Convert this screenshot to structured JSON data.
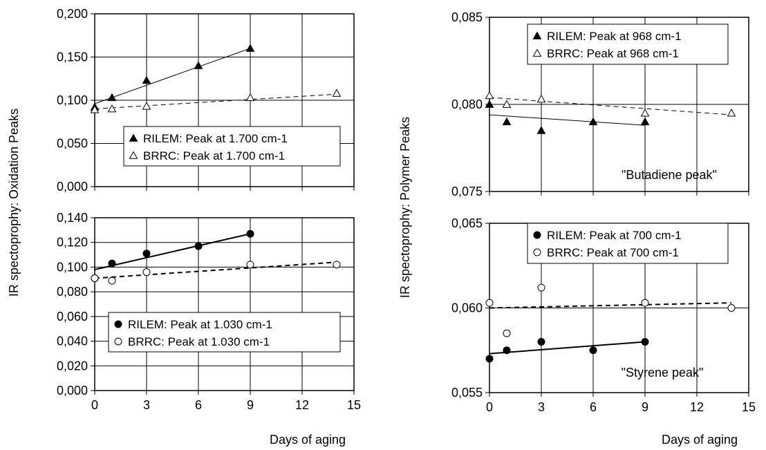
{
  "figure": {
    "left_ylabel": "IR spectoprophy: Oxidation Peaks",
    "right_ylabel": "IR spectoprophy: Polymer Peaks",
    "left_xlabel": "Days of aging",
    "right_xlabel": "Days of aging"
  },
  "chart_data": [
    {
      "type": "scatter",
      "xlim": [
        0,
        15
      ],
      "ylim": [
        0,
        0.2
      ],
      "yticks": [
        "0,000",
        "0,050",
        "0,100",
        "0,150",
        "0,200"
      ],
      "xticks": [],
      "grid": true,
      "legend_position": "bottom-center",
      "annotation": "",
      "series": [
        {
          "name": "RILEM: Peak at 1.700 cm-1",
          "marker": "triangle-filled",
          "x": [
            0,
            1,
            3,
            6,
            9
          ],
          "y": [
            0.092,
            0.103,
            0.123,
            0.14,
            0.16
          ],
          "trend": {
            "x": [
              0,
              9
            ],
            "y": [
              0.096,
              0.16
            ],
            "dash": false,
            "width": 1
          }
        },
        {
          "name": "BRRC: Peak at 1.700 cm-1",
          "marker": "triangle-open",
          "x": [
            0,
            1,
            3,
            9,
            14
          ],
          "y": [
            0.089,
            0.09,
            0.093,
            0.103,
            0.108
          ],
          "trend": {
            "x": [
              0,
              14
            ],
            "y": [
              0.09,
              0.107
            ],
            "dash": true,
            "width": 1
          }
        }
      ]
    },
    {
      "type": "scatter",
      "xlim": [
        0,
        15
      ],
      "ylim": [
        0,
        0.14
      ],
      "yticks": [
        "0,000",
        "0,020",
        "0,040",
        "0,060",
        "0,080",
        "0,100",
        "0,120",
        "0,140"
      ],
      "xticks": [
        "0",
        "3",
        "6",
        "9",
        "12",
        "15"
      ],
      "grid": true,
      "legend_position": "bottom-right",
      "annotation": "",
      "series": [
        {
          "name": "RILEM: Peak at 1.030 cm-1",
          "marker": "circle-filled",
          "x": [
            0,
            1,
            3,
            6,
            9
          ],
          "y": [
            0.091,
            0.103,
            0.111,
            0.117,
            0.127
          ],
          "trend": {
            "x": [
              0,
              9
            ],
            "y": [
              0.098,
              0.127
            ],
            "dash": false,
            "width": 2
          }
        },
        {
          "name": "BRRC: Peak at 1.030 cm-1",
          "marker": "circle-open",
          "x": [
            0,
            1,
            3,
            9,
            14
          ],
          "y": [
            0.091,
            0.089,
            0.096,
            0.102,
            0.102
          ],
          "trend": {
            "x": [
              0,
              14
            ],
            "y": [
              0.091,
              0.104
            ],
            "dash": true,
            "width": 2
          }
        }
      ]
    },
    {
      "type": "scatter",
      "xlim": [
        0,
        15
      ],
      "ylim": [
        0.075,
        0.085
      ],
      "yticks": [
        "0,075",
        "0,080",
        "0,085"
      ],
      "xticks": [],
      "grid": true,
      "legend_position": "top-center",
      "annotation": "\"Butadiene peak\"",
      "series": [
        {
          "name": "RILEM: Peak at 968 cm-1",
          "marker": "triangle-filled",
          "x": [
            0,
            1,
            3,
            6,
            9
          ],
          "y": [
            0.08,
            0.079,
            0.0785,
            0.079,
            0.079
          ],
          "trend": {
            "x": [
              0,
              9
            ],
            "y": [
              0.0794,
              0.0788
            ],
            "dash": false,
            "width": 1
          }
        },
        {
          "name": "BRRC: Peak at 968 cm-1",
          "marker": "triangle-open",
          "x": [
            0,
            1,
            3,
            9,
            14
          ],
          "y": [
            0.0805,
            0.08,
            0.0803,
            0.0795,
            0.0795
          ],
          "trend": {
            "x": [
              0,
              14
            ],
            "y": [
              0.0804,
              0.0794
            ],
            "dash": true,
            "width": 1
          }
        }
      ]
    },
    {
      "type": "scatter",
      "xlim": [
        0,
        15
      ],
      "ylim": [
        0.055,
        0.065
      ],
      "yticks": [
        "0,055",
        "0,060",
        "0,065"
      ],
      "xticks": [
        "0",
        "3",
        "6",
        "9",
        "12",
        "15"
      ],
      "grid": true,
      "legend_position": "top-center",
      "annotation": "\"Styrene peak\"",
      "series": [
        {
          "name": "RILEM: Peak at 700 cm-1",
          "marker": "circle-filled",
          "x": [
            0,
            1,
            3,
            6,
            9
          ],
          "y": [
            0.057,
            0.0575,
            0.058,
            0.0575,
            0.058
          ],
          "trend": {
            "x": [
              0,
              9
            ],
            "y": [
              0.0573,
              0.058
            ],
            "dash": false,
            "width": 2
          }
        },
        {
          "name": "BRRC: Peak at 700 cm-1",
          "marker": "circle-open",
          "x": [
            0,
            1,
            3,
            9,
            14
          ],
          "y": [
            0.0603,
            0.0585,
            0.0612,
            0.0603,
            0.06
          ],
          "trend": {
            "x": [
              0,
              14
            ],
            "y": [
              0.06,
              0.0603
            ],
            "dash": true,
            "width": 2
          }
        }
      ]
    }
  ]
}
